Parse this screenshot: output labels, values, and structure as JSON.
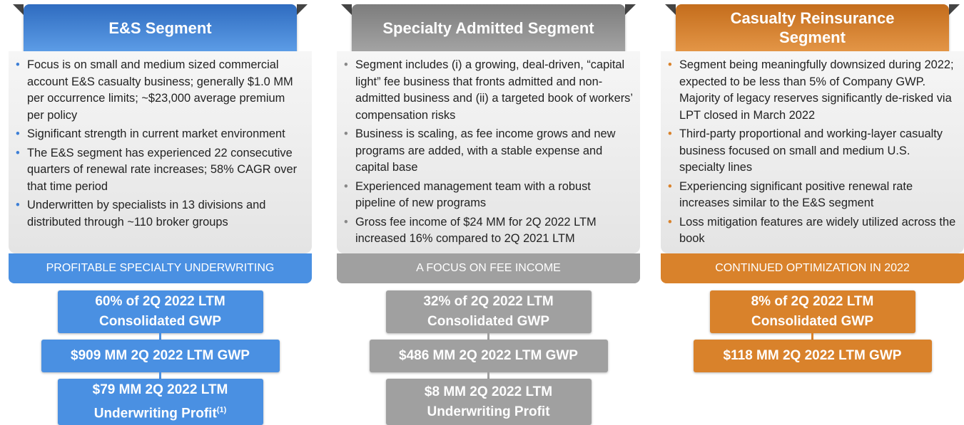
{
  "columns": [
    {
      "title": "E&S Segment",
      "bullets": [
        "Focus is on small and medium sized commercial account E&S casualty business; generally $1.0 MM per occurrence limits; ~$23,000 average premium per policy",
        "Significant strength in current market environment",
        "The E&S segment has experienced 22 consecutive quarters of renewal rate increases; 58% CAGR over that time period",
        "Underwritten by specialists in 13 divisions and distributed through ~110 broker groups"
      ],
      "banner": "PROFITABLE SPECIALTY UNDERWRITING",
      "boxes": [
        {
          "text": "60% of 2Q 2022 LTM Consolidated GWP"
        },
        {
          "text": "$909 MM 2Q 2022 LTM GWP"
        },
        {
          "text": "$79 MM 2Q 2022 LTM Underwriting Profit",
          "note": "(1)"
        }
      ]
    },
    {
      "title": "Specialty Admitted Segment",
      "bullets": [
        "Segment includes (i) a growing, deal-driven, “capital light” fee business that fronts admitted and non-admitted business and (ii) a targeted book of workers’ compensation risks",
        "Business is scaling, as fee income grows and new programs are added, with a stable expense and capital base",
        "Experienced management team with a robust pipeline of new programs",
        "Gross fee income of $24 MM for 2Q 2022 LTM increased 16% compared to 2Q 2021 LTM"
      ],
      "banner": "A FOCUS ON FEE INCOME",
      "boxes": [
        {
          "text": "32% of 2Q 2022 LTM Consolidated GWP"
        },
        {
          "text": "$486 MM 2Q 2022 LTM GWP"
        },
        {
          "text": "$8 MM 2Q 2022 LTM Underwriting Profit"
        }
      ]
    },
    {
      "title": "Casualty Reinsurance Segment",
      "bullets": [
        "Segment being meaningfully downsized during 2022; expected to be less than 5% of Company GWP. Majority of legacy reserves significantly de-risked via LPT closed in March 2022",
        "Third-party proportional and working-layer casualty business focused on small and medium U.S. specialty lines",
        "Experiencing significant positive renewal rate increases similar to the E&S segment",
        "Loss mitigation features are widely utilized across the book"
      ],
      "banner": "CONTINUED OPTIMIZATION IN 2022",
      "boxes": [
        {
          "text": "8% of 2Q 2022 LTM Consolidated GWP"
        },
        {
          "text": "$118 MM 2Q 2022 LTM GWP"
        }
      ]
    }
  ]
}
